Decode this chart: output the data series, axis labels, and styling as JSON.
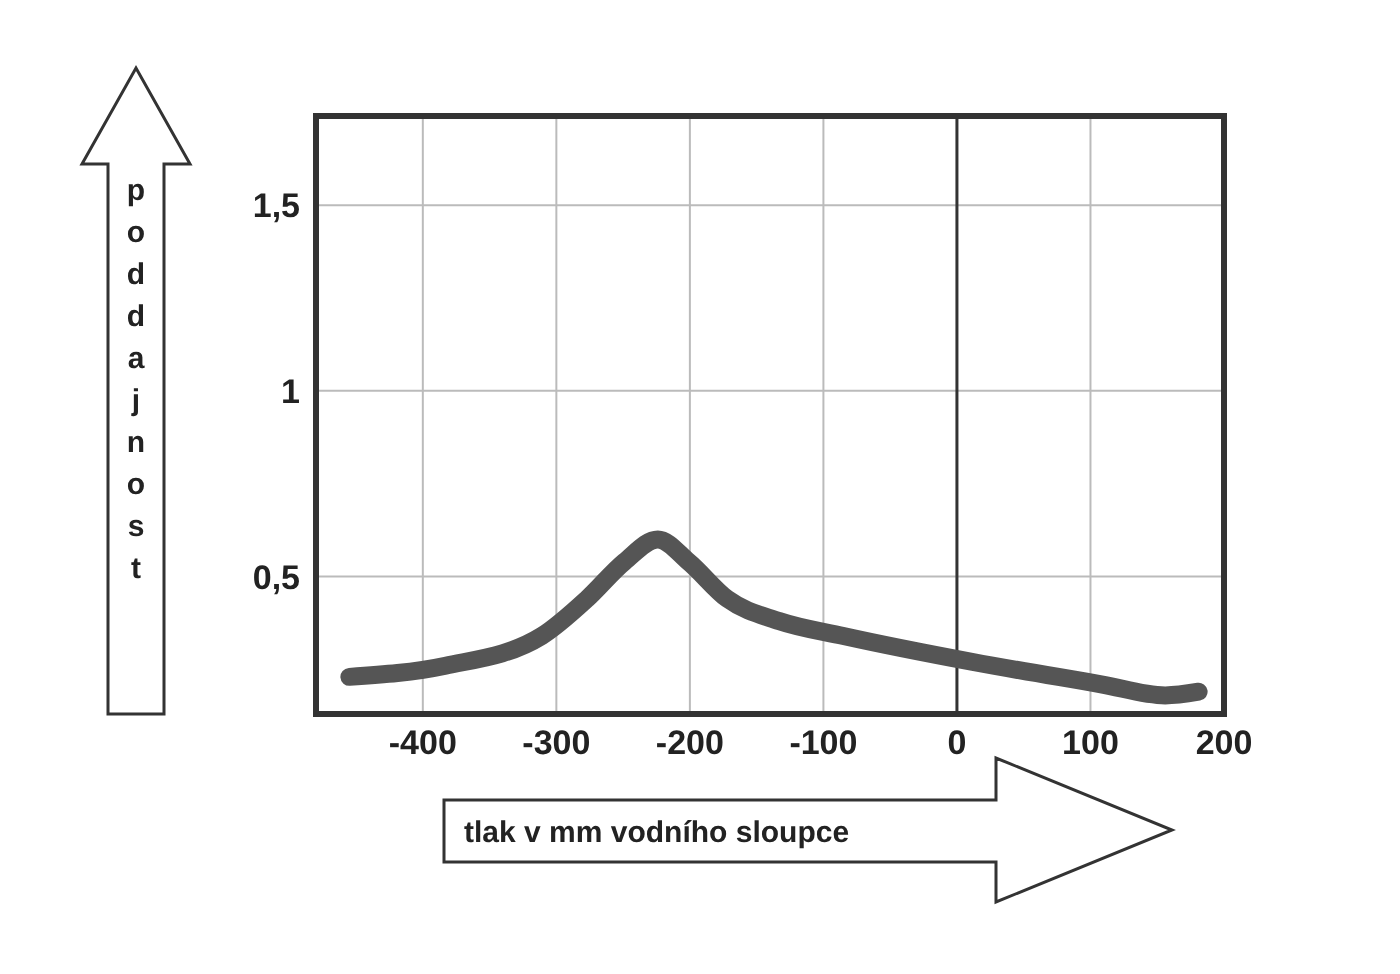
{
  "chart_data": {
    "type": "line",
    "xlabel": "tlak v mm vodního sloupce",
    "ylabel": "poddajnost",
    "x": [
      -455,
      -383,
      -311,
      -277,
      -249,
      -224,
      -201,
      -172,
      -133,
      -85,
      12,
      108,
      156,
      181
    ],
    "series": [
      {
        "color": "#555555",
        "values": [
          0.23,
          0.26,
          0.34,
          0.44,
          0.54,
          0.6,
          0.54,
          0.44,
          0.38,
          0.34,
          0.27,
          0.21,
          0.18,
          0.19
        ]
      }
    ],
    "xlim": [
      -480,
      200
    ],
    "xticks": [
      -400,
      -300,
      -200,
      -100,
      0,
      100,
      200
    ],
    "ylim": [
      0.13,
      1.74
    ],
    "yticks": [
      {
        "value": 0.5,
        "label": "0,5"
      },
      {
        "value": 1,
        "label": "1"
      },
      {
        "value": 1.5,
        "label": "1,5"
      }
    ],
    "grid": true,
    "marker": "none",
    "line_style": "solid",
    "ref_lines": [
      {
        "axis": "x",
        "value": 0,
        "color": "#333333"
      }
    ]
  }
}
